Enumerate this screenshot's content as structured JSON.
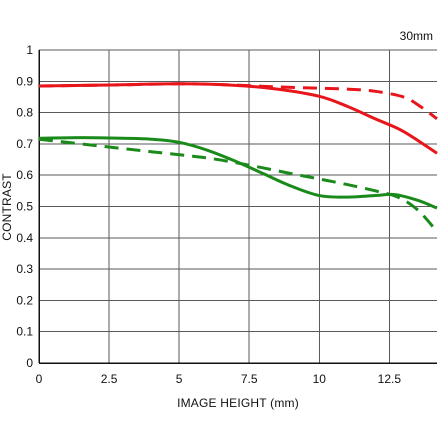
{
  "chart_data": {
    "type": "line",
    "title": "",
    "annotation": "30mm",
    "xlabel": "IMAGE HEIGHT (mm)",
    "ylabel": "CONTRAST",
    "xlim": [
      0,
      14.2
    ],
    "ylim": [
      0,
      1
    ],
    "xticks": [
      0,
      2.5,
      5,
      7.5,
      10,
      12.5
    ],
    "xtick_labels": [
      "0",
      "2.5",
      "5",
      "7.5",
      "10",
      "12.5"
    ],
    "yticks": [
      0,
      0.1,
      0.2,
      0.3,
      0.4,
      0.5,
      0.6,
      0.7,
      0.8,
      0.9,
      1
    ],
    "ytick_labels": [
      "0",
      "0.1",
      "0.2",
      "0.3",
      "0.4",
      "0.5",
      "0.6",
      "0.7",
      "0.8",
      "0.9",
      "1"
    ],
    "grid": true,
    "legend": "none",
    "series": [
      {
        "color": "#e8151b",
        "style": "solid",
        "points": [
          [
            0,
            0.885
          ],
          [
            2.5,
            0.888
          ],
          [
            5,
            0.892
          ],
          [
            7,
            0.887
          ],
          [
            8.5,
            0.875
          ],
          [
            10,
            0.852
          ],
          [
            11,
            0.82
          ],
          [
            12,
            0.78
          ],
          [
            13,
            0.74
          ],
          [
            14.2,
            0.67
          ]
        ]
      },
      {
        "color": "#e8151b",
        "style": "dashed",
        "points": [
          [
            0,
            0.885
          ],
          [
            2.5,
            0.888
          ],
          [
            5,
            0.892
          ],
          [
            7,
            0.888
          ],
          [
            8.5,
            0.882
          ],
          [
            10,
            0.878
          ],
          [
            11,
            0.875
          ],
          [
            12,
            0.868
          ],
          [
            13,
            0.85
          ],
          [
            13.6,
            0.82
          ],
          [
            14.2,
            0.78
          ]
        ]
      },
      {
        "color": "#1a8a1a",
        "style": "solid",
        "points": [
          [
            0,
            0.718
          ],
          [
            1.5,
            0.72
          ],
          [
            3,
            0.718
          ],
          [
            4,
            0.715
          ],
          [
            5,
            0.705
          ],
          [
            6,
            0.68
          ],
          [
            7,
            0.645
          ],
          [
            8,
            0.605
          ],
          [
            9,
            0.565
          ],
          [
            10,
            0.535
          ],
          [
            11,
            0.53
          ],
          [
            12,
            0.535
          ],
          [
            12.7,
            0.538
          ],
          [
            13.5,
            0.52
          ],
          [
            14.2,
            0.495
          ]
        ]
      },
      {
        "color": "#1a8a1a",
        "style": "dashed",
        "points": [
          [
            0,
            0.715
          ],
          [
            2,
            0.695
          ],
          [
            4,
            0.675
          ],
          [
            6,
            0.655
          ],
          [
            7.5,
            0.632
          ],
          [
            9,
            0.605
          ],
          [
            10,
            0.588
          ],
          [
            11,
            0.57
          ],
          [
            12,
            0.55
          ],
          [
            12.8,
            0.53
          ],
          [
            13.5,
            0.49
          ],
          [
            14.2,
            0.42
          ]
        ]
      }
    ]
  }
}
